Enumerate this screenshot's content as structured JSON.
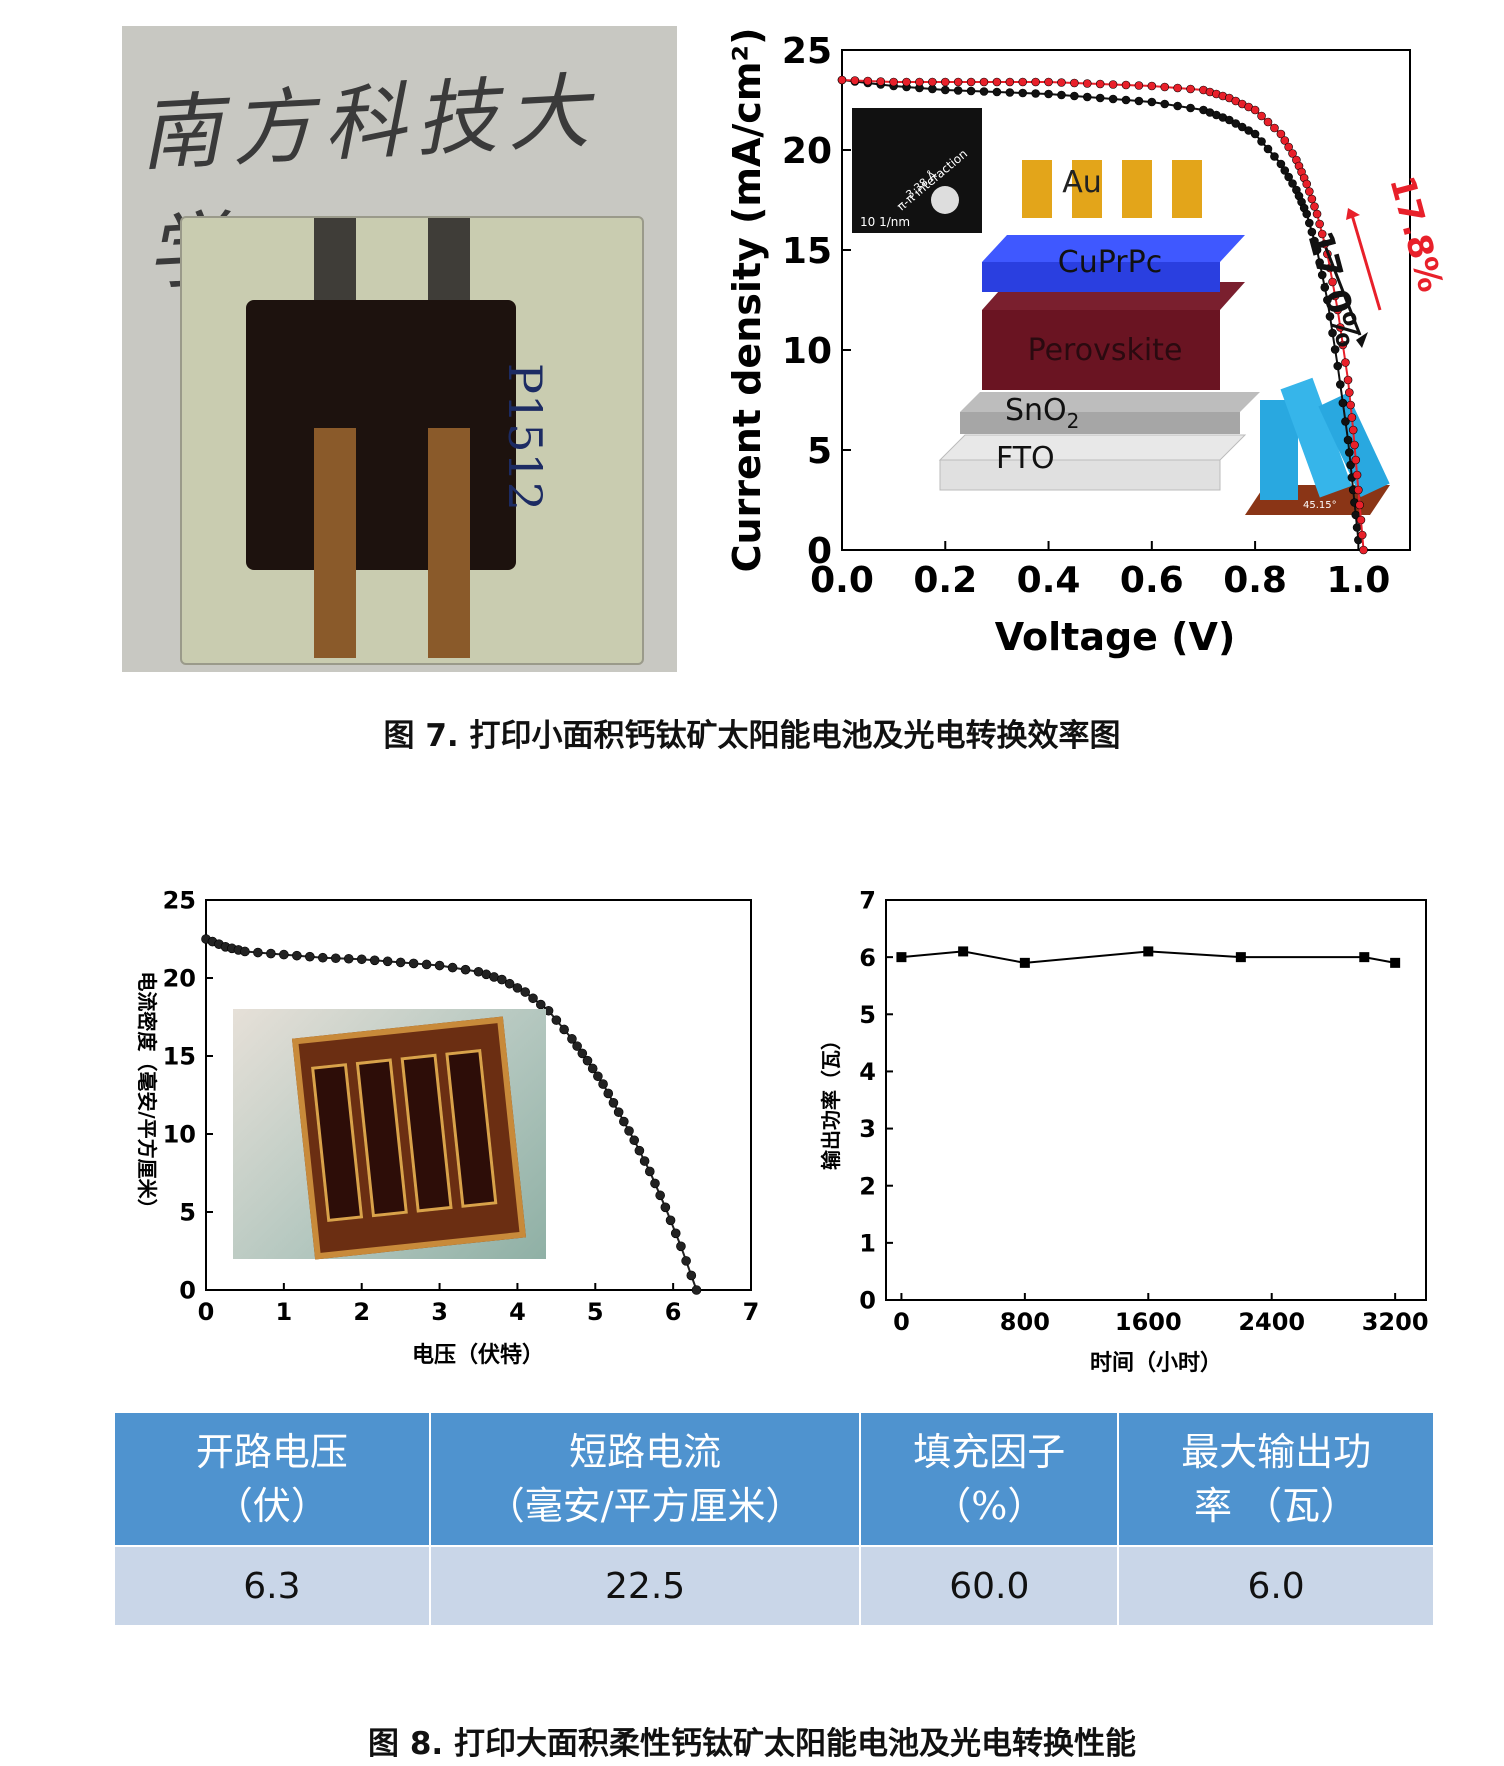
{
  "figure7": {
    "caption": "图 7. 打印小面积钙钛矿太阳能电池及光电转换效率图",
    "photo": {
      "handwriting": "南方科技大学",
      "sample_mark": "P1512"
    },
    "jv_chart": {
      "xlabel": "Voltage (V)",
      "ylabel": "Current density (mA/cm²)",
      "x_ticks": [
        "0.0",
        "0.2",
        "0.4",
        "0.6",
        "0.8",
        "1.0"
      ],
      "y_ticks": [
        "0",
        "5",
        "10",
        "15",
        "20",
        "25"
      ],
      "annotations": {
        "red_eff": "17.8%",
        "black_eff": "17.0%",
        "tem_label": "π-π interaction",
        "tem_spacing": "3.38 Å",
        "tem_scale": "10  1/nm",
        "angle": "45.15°"
      },
      "device_layers": [
        "Au",
        "CuPrPc",
        "Perovskite",
        "SnO",
        "FTO"
      ],
      "sno2_subscript": "2"
    }
  },
  "figure8": {
    "caption": "图 8. 打印大面积柔性钙钛矿太阳能电池及光电转换性能",
    "jv_chart": {
      "xlabel": "电压（伏特）",
      "ylabel": "电流密度（毫安/平方厘米）",
      "x_ticks": [
        "0",
        "1",
        "2",
        "3",
        "4",
        "5",
        "6",
        "7"
      ],
      "y_ticks": [
        "0",
        "5",
        "10",
        "15",
        "20",
        "25"
      ]
    },
    "power_chart": {
      "xlabel": "时间（小时）",
      "ylabel": "输出功率（瓦）",
      "x_ticks": [
        "0",
        "800",
        "1600",
        "2400",
        "3200"
      ],
      "y_ticks": [
        "0",
        "1",
        "2",
        "3",
        "4",
        "5",
        "6",
        "7"
      ]
    },
    "table": {
      "headers": [
        [
          "开路电压",
          "（伏）"
        ],
        [
          "短路电流",
          "（毫安/平方厘米）"
        ],
        [
          "填充因子",
          "（%）"
        ],
        [
          "最大输出功",
          "率 （瓦）"
        ]
      ],
      "values": [
        "6.3",
        "22.5",
        "60.0",
        "6.0"
      ]
    }
  },
  "colors": {
    "red_series": "#e8202a",
    "black_series": "#111111",
    "table_header": "#4f93cf",
    "table_row": "#c9d6e8"
  },
  "chart_data": [
    {
      "type": "line",
      "xlabel": "Voltage (V)",
      "ylabel": "Current density (mA/cm²)",
      "xlim": [
        0,
        1.1
      ],
      "ylim": [
        0,
        25
      ],
      "series": [
        {
          "name": "17.8%",
          "x": [
            0,
            0.1,
            0.2,
            0.3,
            0.4,
            0.5,
            0.6,
            0.7,
            0.75,
            0.8,
            0.85,
            0.88,
            0.9,
            0.92,
            0.94,
            0.96,
            0.98,
            0.99,
            1.0,
            1.01
          ],
          "y": [
            23.5,
            23.4,
            23.4,
            23.4,
            23.4,
            23.3,
            23.2,
            23.0,
            22.6,
            22.0,
            20.8,
            19.5,
            18.3,
            16.8,
            14.8,
            12.0,
            8.5,
            6.0,
            3.0,
            0
          ]
        },
        {
          "name": "17.0%",
          "x": [
            0,
            0.1,
            0.2,
            0.3,
            0.4,
            0.5,
            0.6,
            0.7,
            0.75,
            0.8,
            0.85,
            0.88,
            0.9,
            0.92,
            0.94,
            0.96,
            0.98,
            0.99,
            1.0
          ],
          "y": [
            23.5,
            23.2,
            23.0,
            22.9,
            22.8,
            22.6,
            22.4,
            22.0,
            21.5,
            20.8,
            19.3,
            18.0,
            16.8,
            15.0,
            12.5,
            9.2,
            5.5,
            3.0,
            0.5
          ]
        }
      ]
    },
    {
      "type": "line",
      "xlabel": "电压（伏特）",
      "ylabel": "电流密度（毫安/平方厘米）",
      "xlim": [
        0,
        7
      ],
      "ylim": [
        0,
        25
      ],
      "series": [
        {
          "x": [
            0,
            0.25,
            0.5,
            1,
            1.5,
            2,
            2.5,
            3,
            3.5,
            3.8,
            4.1,
            4.4,
            4.7,
            4.9,
            5.1,
            5.3,
            5.5,
            5.7,
            5.9,
            6.1,
            6.3
          ],
          "y": [
            22.5,
            22.0,
            21.7,
            21.5,
            21.3,
            21.2,
            21.0,
            20.8,
            20.4,
            19.9,
            19.1,
            17.9,
            16.1,
            14.7,
            13.2,
            11.4,
            9.6,
            7.6,
            5.3,
            2.8,
            0
          ]
        }
      ]
    },
    {
      "type": "line",
      "xlabel": "时间（小时）",
      "ylabel": "输出功率（瓦）",
      "xlim": [
        -100,
        3400
      ],
      "ylim": [
        0,
        7
      ],
      "series": [
        {
          "x": [
            0,
            400,
            800,
            1600,
            2200,
            3000,
            3200
          ],
          "y": [
            6.0,
            6.1,
            5.9,
            6.1,
            6.0,
            6.0,
            5.9
          ]
        }
      ]
    }
  ]
}
